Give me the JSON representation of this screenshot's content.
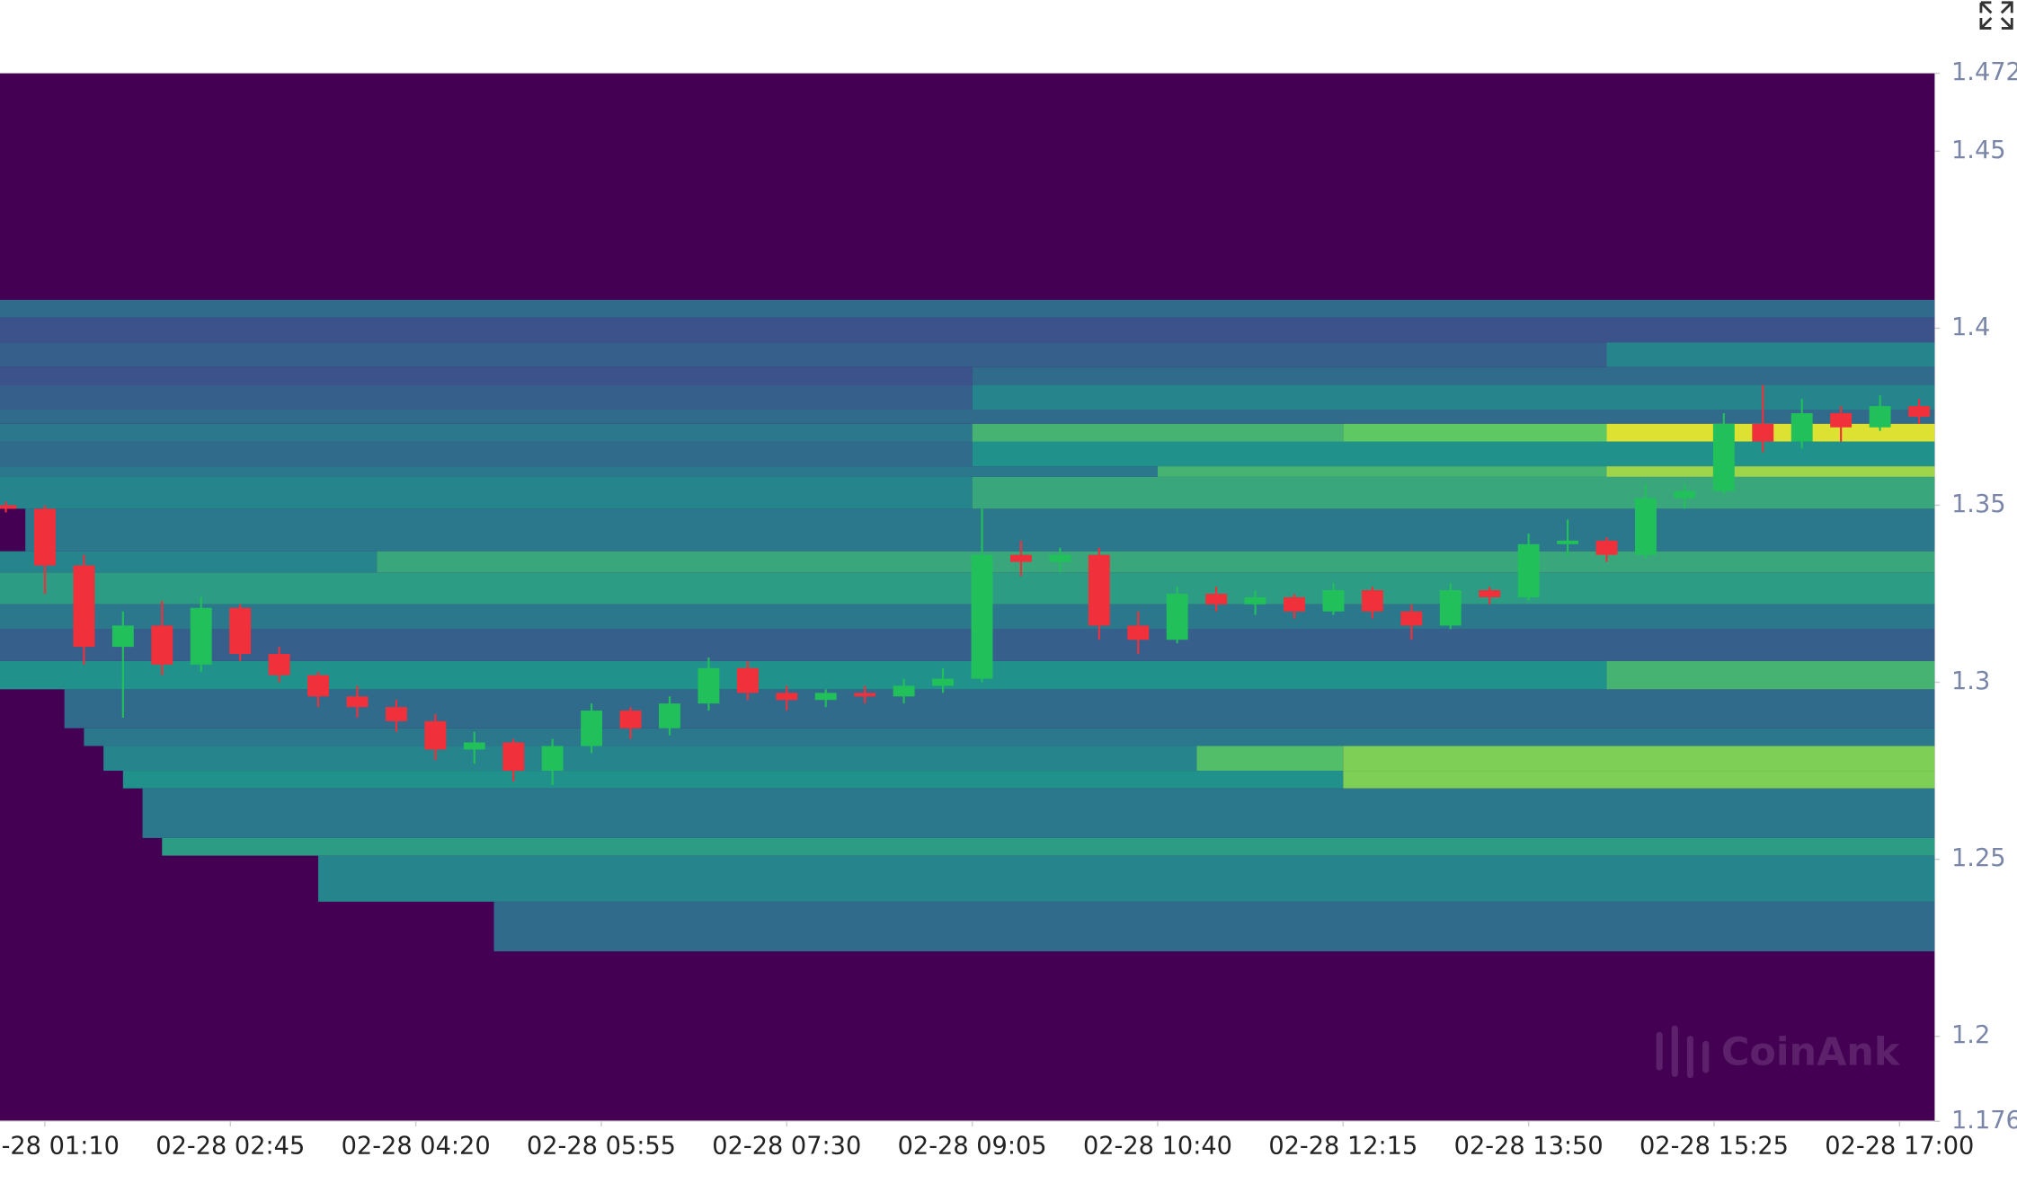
{
  "chart_data": {
    "type": "candlestick-heatmap",
    "watermark": "CoinAnk",
    "xlim": [
      "02-28 00:47",
      "02-28 17:18"
    ],
    "xticks": [
      "02-28 01:10",
      "02-28 02:45",
      "02-28 04:20",
      "02-28 05:55",
      "02-28 07:30",
      "02-28 09:05",
      "02-28 10:40",
      "02-28 12:15",
      "02-28 13:50",
      "02-28 15:25",
      "02-28 17:00"
    ],
    "ylim": [
      1.176,
      1.472
    ],
    "yticks": [
      1.176,
      1.2,
      1.25,
      1.3,
      1.35,
      1.4,
      1.45,
      1.472
    ],
    "colormap": [
      "#440154",
      "#3b528b",
      "#21918c",
      "#5ec962",
      "#fde725"
    ],
    "up_color": "#22c05a",
    "down_color": "#f0303a",
    "x": [
      "02-28 00:50",
      "02-28 01:10",
      "02-28 01:30",
      "02-28 01:50",
      "02-28 02:10",
      "02-28 02:30",
      "02-28 02:50",
      "02-28 03:10",
      "02-28 03:30",
      "02-28 03:50",
      "02-28 04:10",
      "02-28 04:30",
      "02-28 04:50",
      "02-28 05:10",
      "02-28 05:30",
      "02-28 05:50",
      "02-28 06:10",
      "02-28 06:30",
      "02-28 06:50",
      "02-28 07:10",
      "02-28 07:30",
      "02-28 07:50",
      "02-28 08:10",
      "02-28 08:30",
      "02-28 08:50",
      "02-28 09:10",
      "02-28 09:30",
      "02-28 09:50",
      "02-28 10:10",
      "02-28 10:30",
      "02-28 10:50",
      "02-28 11:10",
      "02-28 11:30",
      "02-28 11:50",
      "02-28 12:10",
      "02-28 12:30",
      "02-28 12:50",
      "02-28 13:10",
      "02-28 13:30",
      "02-28 13:50",
      "02-28 14:10",
      "02-28 14:30",
      "02-28 14:50",
      "02-28 15:10",
      "02-28 15:30",
      "02-28 15:50",
      "02-28 16:10",
      "02-28 16:30",
      "02-28 16:50",
      "02-28 17:10"
    ],
    "open": [
      1.35,
      1.349,
      1.333,
      1.31,
      1.316,
      1.305,
      1.321,
      1.308,
      1.302,
      1.296,
      1.293,
      1.289,
      1.281,
      1.283,
      1.275,
      1.282,
      1.292,
      1.287,
      1.294,
      1.304,
      1.297,
      1.295,
      1.297,
      1.296,
      1.299,
      1.301,
      1.336,
      1.334,
      1.336,
      1.316,
      1.312,
      1.325,
      1.322,
      1.324,
      1.32,
      1.326,
      1.32,
      1.316,
      1.326,
      1.324,
      1.339,
      1.34,
      1.336,
      1.352,
      1.354,
      1.373,
      1.368,
      1.376,
      1.372,
      1.378
    ],
    "high": [
      1.351,
      1.35,
      1.336,
      1.32,
      1.323,
      1.324,
      1.322,
      1.31,
      1.303,
      1.299,
      1.295,
      1.291,
      1.286,
      1.284,
      1.284,
      1.294,
      1.293,
      1.296,
      1.307,
      1.306,
      1.299,
      1.298,
      1.299,
      1.301,
      1.304,
      1.349,
      1.34,
      1.338,
      1.338,
      1.32,
      1.327,
      1.327,
      1.326,
      1.325,
      1.328,
      1.327,
      1.322,
      1.328,
      1.327,
      1.342,
      1.346,
      1.341,
      1.356,
      1.356,
      1.376,
      1.384,
      1.38,
      1.378,
      1.381,
      1.38
    ],
    "low": [
      1.348,
      1.325,
      1.305,
      1.29,
      1.302,
      1.303,
      1.306,
      1.3,
      1.293,
      1.29,
      1.286,
      1.278,
      1.277,
      1.272,
      1.271,
      1.28,
      1.284,
      1.285,
      1.292,
      1.295,
      1.292,
      1.293,
      1.294,
      1.294,
      1.297,
      1.3,
      1.33,
      1.331,
      1.312,
      1.308,
      1.311,
      1.32,
      1.319,
      1.318,
      1.319,
      1.318,
      1.312,
      1.315,
      1.322,
      1.323,
      1.336,
      1.334,
      1.335,
      1.349,
      1.353,
      1.365,
      1.366,
      1.368,
      1.371,
      1.373
    ],
    "close": [
      1.349,
      1.333,
      1.31,
      1.316,
      1.305,
      1.321,
      1.308,
      1.302,
      1.296,
      1.293,
      1.289,
      1.281,
      1.283,
      1.275,
      1.282,
      1.292,
      1.287,
      1.294,
      1.304,
      1.297,
      1.295,
      1.297,
      1.296,
      1.299,
      1.301,
      1.336,
      1.334,
      1.336,
      1.316,
      1.312,
      1.325,
      1.322,
      1.324,
      1.32,
      1.326,
      1.32,
      1.316,
      1.326,
      1.324,
      1.339,
      1.34,
      1.336,
      1.352,
      1.354,
      1.373,
      1.368,
      1.376,
      1.372,
      1.378,
      1.375
    ],
    "heatmap": [
      {
        "range": [
          1.403,
          1.408
        ],
        "steps": [
          {
            "from": "02-28 00:47",
            "value": 0.35
          }
        ]
      },
      {
        "range": [
          1.396,
          1.403
        ],
        "steps": [
          {
            "from": "02-28 00:47",
            "value": 0.25
          }
        ]
      },
      {
        "range": [
          1.389,
          1.396
        ],
        "steps": [
          {
            "from": "02-28 00:47",
            "value": 0.3
          },
          {
            "from": "02-28 14:30",
            "value": 0.45
          }
        ]
      },
      {
        "range": [
          1.384,
          1.389
        ],
        "steps": [
          {
            "from": "02-28 00:47",
            "value": 0.25
          },
          {
            "from": "02-28 09:05",
            "value": 0.35
          }
        ]
      },
      {
        "range": [
          1.377,
          1.384
        ],
        "steps": [
          {
            "from": "02-28 00:47",
            "value": 0.3
          },
          {
            "from": "02-28 09:05",
            "value": 0.45
          }
        ]
      },
      {
        "range": [
          1.373,
          1.377
        ],
        "steps": [
          {
            "from": "02-28 00:47",
            "value": 0.35
          }
        ]
      },
      {
        "range": [
          1.368,
          1.373
        ],
        "steps": [
          {
            "from": "02-28 00:47",
            "value": 0.4
          },
          {
            "from": "02-28 09:05",
            "value": 0.65
          },
          {
            "from": "02-28 12:15",
            "value": 0.75
          },
          {
            "from": "02-28 14:30",
            "value": 0.95
          }
        ]
      },
      {
        "range": [
          1.361,
          1.368
        ],
        "steps": [
          {
            "from": "02-28 00:47",
            "value": 0.35
          },
          {
            "from": "02-28 09:05",
            "value": 0.5
          }
        ]
      },
      {
        "range": [
          1.358,
          1.361
        ],
        "steps": [
          {
            "from": "02-28 00:47",
            "value": 0.4
          },
          {
            "from": "02-28 10:40",
            "value": 0.65
          },
          {
            "from": "02-28 14:30",
            "value": 0.85
          }
        ]
      },
      {
        "range": [
          1.349,
          1.358
        ],
        "steps": [
          {
            "from": "02-28 00:47",
            "value": 0.45
          },
          {
            "from": "02-28 09:05",
            "value": 0.6
          }
        ]
      },
      {
        "range": [
          1.337,
          1.349
        ],
        "steps": [
          {
            "from": "02-28 00:47",
            "value": 0
          },
          {
            "from": "02-28 01:00",
            "value": 0.4
          }
        ]
      },
      {
        "range": [
          1.331,
          1.337
        ],
        "steps": [
          {
            "from": "02-28 00:47",
            "value": 0.45
          },
          {
            "from": "02-28 04:00",
            "value": 0.6
          }
        ]
      },
      {
        "range": [
          1.322,
          1.331
        ],
        "steps": [
          {
            "from": "02-28 00:47",
            "value": 0.55
          }
        ]
      },
      {
        "range": [
          1.315,
          1.322
        ],
        "steps": [
          {
            "from": "02-28 00:47",
            "value": 0.4
          }
        ]
      },
      {
        "range": [
          1.306,
          1.315
        ],
        "steps": [
          {
            "from": "02-28 00:47",
            "value": 0.3
          }
        ]
      },
      {
        "range": [
          1.298,
          1.306
        ],
        "steps": [
          {
            "from": "02-28 00:47",
            "value": 0.5
          },
          {
            "from": "02-28 14:30",
            "value": 0.65
          }
        ]
      },
      {
        "range": [
          1.287,
          1.298
        ],
        "steps": [
          {
            "from": "02-28 00:47",
            "value": 0
          },
          {
            "from": "02-28 01:20",
            "value": 0.35
          }
        ]
      },
      {
        "range": [
          1.282,
          1.287
        ],
        "steps": [
          {
            "from": "02-28 00:47",
            "value": 0
          },
          {
            "from": "02-28 01:30",
            "value": 0.4
          }
        ]
      },
      {
        "range": [
          1.275,
          1.282
        ],
        "steps": [
          {
            "from": "02-28 00:47",
            "value": 0
          },
          {
            "from": "02-28 01:40",
            "value": 0.45
          },
          {
            "from": "02-28 11:00",
            "value": 0.7
          },
          {
            "from": "02-28 12:15",
            "value": 0.8
          }
        ]
      },
      {
        "range": [
          1.27,
          1.275
        ],
        "steps": [
          {
            "from": "02-28 00:47",
            "value": 0
          },
          {
            "from": "02-28 01:50",
            "value": 0.5
          },
          {
            "from": "02-28 12:15",
            "value": 0.8
          }
        ]
      },
      {
        "range": [
          1.256,
          1.27
        ],
        "steps": [
          {
            "from": "02-28 00:47",
            "value": 0
          },
          {
            "from": "02-28 02:00",
            "value": 0.4
          }
        ]
      },
      {
        "range": [
          1.251,
          1.256
        ],
        "steps": [
          {
            "from": "02-28 00:47",
            "value": 0
          },
          {
            "from": "02-28 02:10",
            "value": 0.55
          }
        ]
      },
      {
        "range": [
          1.238,
          1.251
        ],
        "steps": [
          {
            "from": "02-28 00:47",
            "value": 0
          },
          {
            "from": "02-28 03:30",
            "value": 0.45
          }
        ]
      },
      {
        "range": [
          1.224,
          1.238
        ],
        "steps": [
          {
            "from": "02-28 00:47",
            "value": 0
          },
          {
            "from": "02-28 05:00",
            "value": 0.35
          }
        ]
      }
    ]
  }
}
